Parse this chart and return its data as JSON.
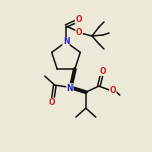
{
  "bg_color": "#ede9d8",
  "bond_color": "#111111",
  "atom_colors": {
    "N": "#2020cc",
    "O": "#cc2020"
  },
  "figsize": [
    1.52,
    1.52
  ],
  "dpi": 100,
  "lw": 1.1,
  "fontsize": 5.5
}
